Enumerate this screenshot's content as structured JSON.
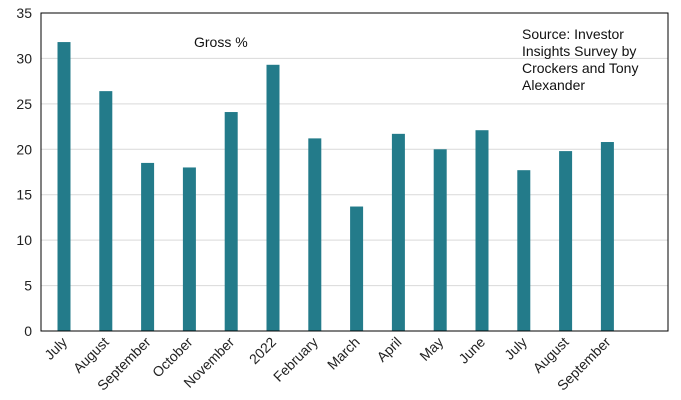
{
  "chart_data": {
    "type": "bar",
    "categories": [
      "July",
      "August",
      "September",
      "October",
      "November",
      "2022",
      "February",
      "March",
      "April",
      "May",
      "June",
      "July",
      "August",
      "September"
    ],
    "series": [
      {
        "name": "Gross %",
        "values": [
          31.8,
          26.4,
          18.5,
          18.0,
          24.1,
          29.3,
          21.2,
          13.7,
          21.7,
          20.0,
          22.1,
          17.7,
          19.8,
          20.8
        ]
      }
    ],
    "ylim": [
      0,
      35
    ],
    "yticks": [
      0,
      5,
      10,
      15,
      20,
      25,
      30,
      35
    ],
    "grid": true,
    "legend": "top-left",
    "annotation": [
      "Source: Investor",
      "Insights Survey by",
      "Crockers and Tony",
      "Alexander"
    ],
    "colors": {
      "bar": "#237b8a",
      "grid": "#d9d9d9",
      "axis": "#000000"
    }
  }
}
